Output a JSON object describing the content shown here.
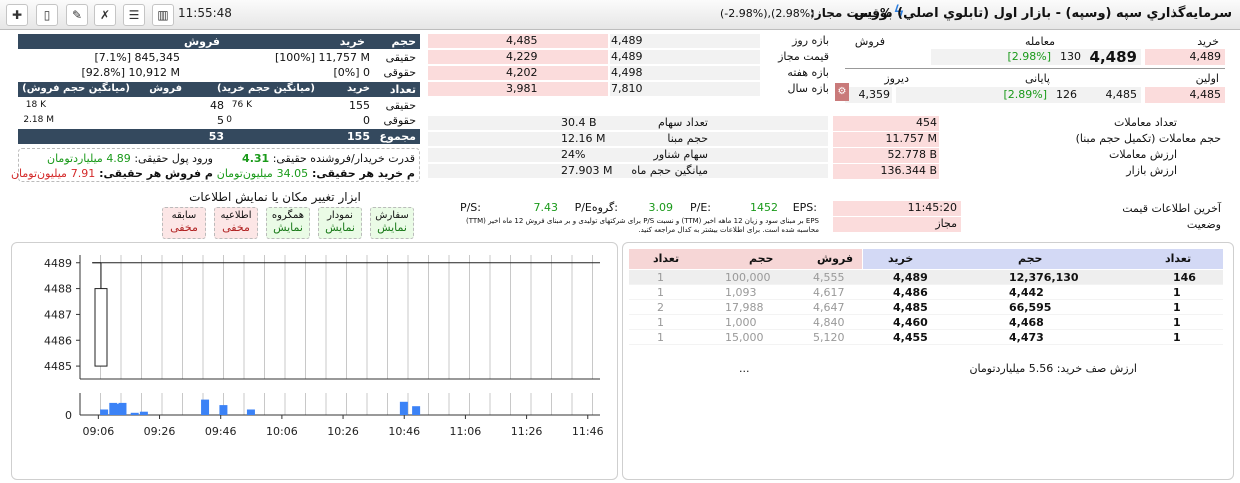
{
  "toolbar": {
    "clock": "11:55:48"
  },
  "header": {
    "title": "سرمايه‌گذاري سپه (وسپه) - بازار اول (تابلوي اصلي) بورس",
    "price_label": "%قیمت مجاز:",
    "price_range": "(2.98%),(2.98%-)"
  },
  "quote": {
    "buy_label": "خرید",
    "trade_label": "معامله",
    "sell_label": "فروش",
    "buy": "4,489",
    "last": "4,489",
    "last_change": "130",
    "last_pct": "[2.98%]",
    "first_label": "اولین",
    "close_label": "پایانی",
    "yest_label": "دیروز",
    "first": "4,485",
    "close": "4,485",
    "close_change": "126",
    "close_pct": "[2.89%]",
    "yest": "4,359"
  },
  "ranges": [
    {
      "label": "بازه روز",
      "low": "4,489",
      "high": "4,485"
    },
    {
      "label": "قیمت مجاز",
      "low": "4,489",
      "high": "4,229"
    },
    {
      "label": "بازه هفته",
      "low": "4,498",
      "high": "4,202"
    },
    {
      "label": "بازه سال",
      "low": "7,810",
      "high": "3,981"
    }
  ],
  "volume_table": {
    "h_vol": "حجم",
    "h_buy": "خرید",
    "h_sell": "فروش",
    "rows": [
      {
        "label": "حقیقی",
        "buy": "[100%] 11,757 M",
        "sell": "[7.1%] 845,345"
      },
      {
        "label": "حقوقی",
        "buy": "[0%] 0",
        "sell": "[92.8%] 10,912 M"
      }
    ]
  },
  "count_table": {
    "h_count": "تعداد",
    "h_buy": "خرید",
    "h_avgbuy": "(میانگین حجم خرید)",
    "h_sell": "فروش",
    "h_avgsell": "(میانگین حجم فروش)",
    "rows": [
      {
        "label": "حقیقی",
        "buy": "155",
        "avgbuy": "76 K",
        "sell": "48",
        "avgsell": "18 K"
      },
      {
        "label": "حقوقی",
        "buy": "0",
        "avgbuy": "0",
        "sell": "5",
        "avgsell": "2.18 M"
      }
    ],
    "sum_label": "مجموع",
    "sum_buy": "155",
    "sum_sell": "53"
  },
  "power": {
    "ratio_label": "قدرت خریدار/فروشنده حقیقی:",
    "ratio": "4.31",
    "inflow_label": "ورود پول حقیقی:",
    "inflow": "4.89",
    "inflow_unit": "میلیاردتومان",
    "per_buy_label": "م خرید هر حقیقی:",
    "per_buy": "34.05",
    "per_buy_unit": "میلیون‌تومان",
    "per_sell_label": "م فروش هر حقیقی:",
    "per_sell": "7.91",
    "per_sell_unit": "میلیون‌تومان"
  },
  "stats": [
    {
      "label": "تعداد سهام",
      "value": "30.4 B"
    },
    {
      "label": "حجم مبنا",
      "value": "12.16 M"
    },
    {
      "label": "سهام شناور",
      "value": "24%"
    },
    {
      "label": "میانگین حجم ماه",
      "value": "27.903 M"
    }
  ],
  "trade_stats": [
    {
      "label": "تعداد معاملات",
      "value": "454"
    },
    {
      "label": "حجم معاملات (تکمیل حجم مبنا)",
      "value": "11.757 M"
    },
    {
      "label": "ارزش معاملات",
      "value": "52.778 B"
    },
    {
      "label": "ارزش بازار",
      "value": "136.344 B"
    }
  ],
  "tools": {
    "title": "ابزار تغییر مکان یا نمایش اطلاعات",
    "items": [
      {
        "name": "سفارش",
        "state": "نمایش",
        "shown": true
      },
      {
        "name": "نمودار",
        "state": "نمایش",
        "shown": true
      },
      {
        "name": "همگروه",
        "state": "نمایش",
        "shown": true
      },
      {
        "name": "اطلاعیه",
        "state": "مخفی",
        "shown": false
      },
      {
        "name": "سابقه",
        "state": "مخفی",
        "shown": false
      }
    ]
  },
  "ratios": {
    "eps_label": "EPS:",
    "eps": "1452",
    "pe_label": "P/E:",
    "pe": "3.09",
    "gpe_label": "P/Eگروه:",
    "gpe": "7.43",
    "ps_label": "P/S:",
    "ps": "",
    "note1": "EPS بر مبنای سود و زیان 12 ماهه اخیر (TTM) و نسبت P/S برای شرکتهای تولیدی و بر مبنای فروش 12 ماه اخیر (TTM)",
    "note2": "محاسبه شده است. برای اطلاعات بیشتر به کدال مراجعه کنید."
  },
  "info": {
    "last_label": "آخرین اطلاعات قیمت",
    "last": "11:45:20",
    "status_label": "وضعیت",
    "status": "مجاز"
  },
  "orderbook": {
    "h_count_buy": "تعداد",
    "h_vol_buy": "حجم",
    "h_buy": "خرید",
    "h_sell": "فروش",
    "h_vol_sell": "حجم",
    "h_count_sell": "تعداد",
    "rows": [
      {
        "bc": "146",
        "bv": "12,376,130",
        "bp": "4,489",
        "sp": "4,555",
        "sv": "100,000",
        "sc": "1"
      },
      {
        "bc": "1",
        "bv": "4,442",
        "bp": "4,486",
        "sp": "4,617",
        "sv": "1,093",
        "sc": "1"
      },
      {
        "bc": "1",
        "bv": "66,595",
        "bp": "4,485",
        "sp": "4,647",
        "sv": "17,988",
        "sc": "2"
      },
      {
        "bc": "1",
        "bv": "4,468",
        "bp": "4,460",
        "sp": "4,840",
        "sv": "1,000",
        "sc": "1"
      },
      {
        "bc": "1",
        "bv": "4,473",
        "bp": "4,455",
        "sp": "5,120",
        "sv": "15,000",
        "sc": "1"
      }
    ],
    "footer_label": "ارزش صف خرید:",
    "footer_value": "5.56",
    "footer_unit": "میلیاردتومان",
    "more": "..."
  },
  "chart_data": {
    "type": "candlestick+bar",
    "y_ticks": [
      4485,
      4486,
      4487,
      4488,
      4489
    ],
    "ylim": [
      4484.5,
      4489.3
    ],
    "x_ticks": [
      "09:06",
      "09:26",
      "09:46",
      "10:06",
      "10:26",
      "10:46",
      "11:06",
      "11:26",
      "11:46"
    ],
    "candle": {
      "time": "09:00",
      "open": 4485,
      "close": 4488,
      "low": 4485,
      "high": 4489
    },
    "line_level": 4489,
    "volume_zero": "0",
    "volume_bars": [
      {
        "t": "09:02",
        "v": 0.25
      },
      {
        "t": "09:05",
        "v": 0.55
      },
      {
        "t": "09:07",
        "v": 0.5
      },
      {
        "t": "09:08",
        "v": 0.55
      },
      {
        "t": "09:12",
        "v": 0.1
      },
      {
        "t": "09:15",
        "v": 0.15
      },
      {
        "t": "09:35",
        "v": 0.7
      },
      {
        "t": "09:41",
        "v": 0.45
      },
      {
        "t": "09:50",
        "v": 0.25
      },
      {
        "t": "10:40",
        "v": 0.6
      },
      {
        "t": "10:44",
        "v": 0.4
      }
    ]
  }
}
